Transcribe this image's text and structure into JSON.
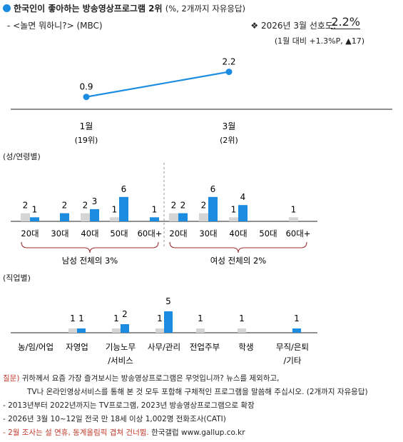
{
  "header": {
    "title": "한국인이 좋아하는 방송영상프로그램 2위",
    "title_note": "(%, 2개까지 자유응답)",
    "subtitle": "- <놀면 뭐하니?> (MBC)",
    "pref_label": "❖ 2026년 3월 선호도:",
    "pref_value": "2.2%",
    "pref_change": "(1월 대비 +1.3%P, ▲17)"
  },
  "section_labels": {
    "demo": "(성/연령별)",
    "job": "(직업별)"
  },
  "colors": {
    "current": "#1c8ce0",
    "previous": "#d5d5d5",
    "bracket": "#a03030"
  },
  "chart_data": [
    {
      "type": "line",
      "categories": [
        "1월",
        "3월"
      ],
      "category_sublabels": [
        "(19위)",
        "(2위)"
      ],
      "values": [
        0.9,
        2.2
      ]
    },
    {
      "type": "bar",
      "categories": [
        "20대",
        "30대",
        "40대",
        "50대",
        "60대+",
        "20대",
        "30대",
        "40대",
        "50대",
        "60대+"
      ],
      "series": [
        {
          "values": [
            2,
            null,
            2,
            1,
            null,
            2,
            2,
            1,
            null,
            1
          ]
        },
        {
          "values": [
            1,
            2,
            3,
            6,
            1,
            2,
            6,
            4,
            null,
            null
          ]
        }
      ],
      "groups": [
        {
          "label": "남성 전체의 3%",
          "from": 0,
          "to": 4
        },
        {
          "label": "여성 전체의 2%",
          "from": 5,
          "to": 9
        }
      ]
    },
    {
      "type": "bar",
      "categories": [
        "농/임/어업",
        "자영업",
        "기능노무\n/서비스",
        "사무/관리",
        "전업주부",
        "학생",
        "무직/은퇴\n/기타"
      ],
      "series": [
        {
          "values": [
            null,
            1,
            1,
            1,
            1,
            1,
            null
          ]
        },
        {
          "values": [
            null,
            1,
            2,
            5,
            null,
            null,
            1
          ]
        }
      ]
    }
  ],
  "footer": {
    "q_label": "질문)",
    "q_line1": "귀하께서 요즘 가장 즐겨보시는 방송영상프로그램은 무엇입니까? 뉴스를 제외하고,",
    "q_line2": "TV나 온라인영상서비스를 통해 본 것 모두 포함해 구체적인 프로그램을 말씀해 주십시오. (2개까지 자유응답)",
    "note1": "- 2013년부터 2022년까지는 TV프로그램, 2023년 방송영상프로그램으로 확장",
    "note2": "- 2026년 3월 10~12일 전국 만 18세 이상 1,002명 전화조사(CATI)",
    "note3": "- 2월 조사는 설 연휴, 동계올림픽 겹쳐 건너뜀.",
    "credit": "한국갤럽 www.gallup.co.kr"
  }
}
